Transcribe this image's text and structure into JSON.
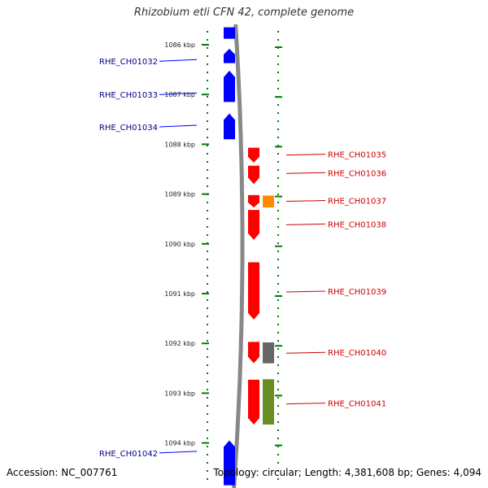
{
  "title": "Rhizobium etli CFN 42, complete genome",
  "footer": {
    "accession": "Accession: NC_007761",
    "topology": "Topology: circular; Length: 4,381,608 bp; Genes: 4,094"
  },
  "colors": {
    "forward": "#0000ff",
    "reverse": "#ff0000",
    "orange": "#ff8c00",
    "gray": "#666666",
    "olive": "#6b8e23",
    "tick": "#008000",
    "backbone": "#888888",
    "left_label": "#00008b",
    "right_label": "#cc0000"
  },
  "scale": {
    "unit": "kbp",
    "ticks": [
      {
        "label": "1086 kbp",
        "value": 1086
      },
      {
        "label": "1087 kbp",
        "value": 1087
      },
      {
        "label": "1088 kbp",
        "value": 1088
      },
      {
        "label": "1089 kbp",
        "value": 1089
      },
      {
        "label": "1090 kbp",
        "value": 1090
      },
      {
        "label": "1091 kbp",
        "value": 1091
      },
      {
        "label": "1092 kbp",
        "value": 1092
      },
      {
        "label": "1093 kbp",
        "value": 1093
      },
      {
        "label": "1094 kbp",
        "value": 1094
      }
    ]
  },
  "features": [
    {
      "start": 1085.65,
      "end": 1085.88,
      "track": "forward",
      "color": "forward",
      "arrow": false
    },
    {
      "start": 1086.08,
      "end": 1086.37,
      "track": "forward",
      "color": "forward",
      "arrow": true,
      "label": "RHE_CH01032",
      "label_at": 1086.33
    },
    {
      "start": 1086.52,
      "end": 1087.15,
      "track": "forward",
      "color": "forward",
      "arrow": true,
      "label": "RHE_CH01033",
      "label_at": 1087.0
    },
    {
      "start": 1087.38,
      "end": 1087.9,
      "track": "forward",
      "color": "forward",
      "arrow": true,
      "label": "RHE_CH01034",
      "label_at": 1087.65
    },
    {
      "start": 1088.07,
      "end": 1088.37,
      "track": "reverse",
      "color": "reverse",
      "arrow": true,
      "label": "RHE_CH01035",
      "label_at": 1088.2
    },
    {
      "start": 1088.43,
      "end": 1088.8,
      "track": "reverse",
      "color": "reverse",
      "arrow": true,
      "label": "RHE_CH01036",
      "label_at": 1088.57
    },
    {
      "start": 1089.02,
      "end": 1089.27,
      "track": "reverse",
      "color": "reverse",
      "arrow": true,
      "label": "RHE_CH01037",
      "label_at": 1089.13
    },
    {
      "start": 1089.03,
      "end": 1089.27,
      "track": "reverse2",
      "color": "orange",
      "arrow": false
    },
    {
      "start": 1089.32,
      "end": 1089.92,
      "track": "reverse",
      "color": "reverse",
      "arrow": true,
      "label": "RHE_CH01038",
      "label_at": 1089.6
    },
    {
      "start": 1090.37,
      "end": 1091.52,
      "track": "reverse",
      "color": "reverse",
      "arrow": true,
      "label": "RHE_CH01039",
      "label_at": 1090.95
    },
    {
      "start": 1091.97,
      "end": 1092.4,
      "track": "reverse",
      "color": "reverse",
      "arrow": true,
      "label": "RHE_CH01040",
      "label_at": 1092.18
    },
    {
      "start": 1091.98,
      "end": 1092.4,
      "track": "reverse2",
      "color": "gray",
      "arrow": false
    },
    {
      "start": 1092.73,
      "end": 1093.63,
      "track": "reverse",
      "color": "reverse",
      "arrow": true,
      "label": "RHE_CH01041",
      "label_at": 1093.2
    },
    {
      "start": 1092.72,
      "end": 1093.63,
      "track": "reverse2",
      "color": "olive",
      "arrow": false
    },
    {
      "start": 1093.95,
      "end": 1094.85,
      "track": "forward",
      "color": "forward",
      "arrow": true,
      "label": "RHE_CH01042",
      "label_at": 1094.2
    }
  ]
}
